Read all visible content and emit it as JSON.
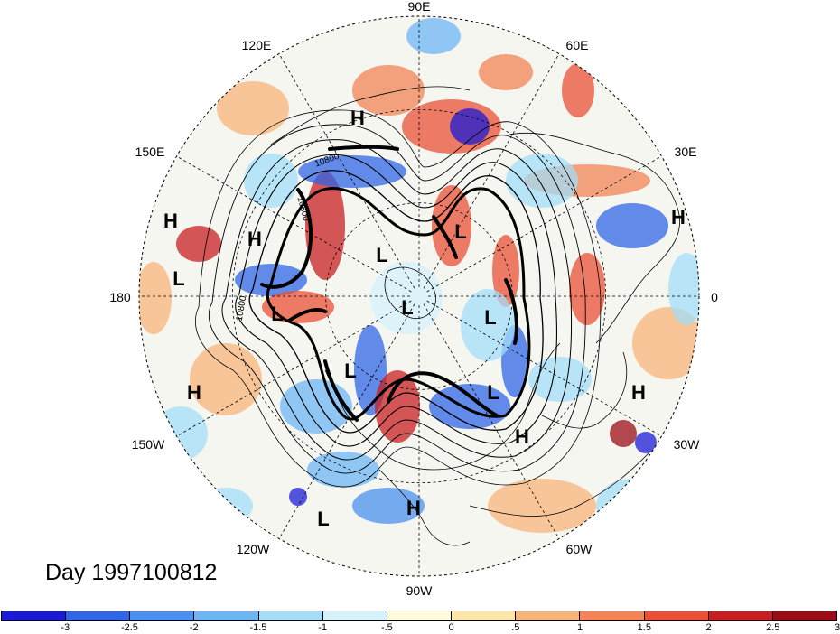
{
  "map": {
    "projection": "polar stereographic (north pole)",
    "longitude_labels": [
      "90E",
      "60E",
      "30E",
      "0",
      "30W",
      "60W",
      "90W",
      "120W",
      "150W",
      "180",
      "150E",
      "120E"
    ],
    "contour_label_values": [
      "10800",
      "10800",
      "10800"
    ],
    "pressure_centers": [
      {
        "type": "H",
        "label": "H"
      },
      {
        "type": "H",
        "label": "H"
      },
      {
        "type": "L",
        "label": "L"
      },
      {
        "type": "H",
        "label": "H"
      },
      {
        "type": "H",
        "label": "H"
      },
      {
        "type": "L",
        "label": "L"
      },
      {
        "type": "L",
        "label": "L"
      },
      {
        "type": "L",
        "label": "L"
      },
      {
        "type": "L",
        "label": "L"
      },
      {
        "type": "L",
        "label": "L"
      },
      {
        "type": "L",
        "label": "L"
      },
      {
        "type": "L",
        "label": "L"
      },
      {
        "type": "H",
        "label": "H"
      },
      {
        "type": "H",
        "label": "H"
      },
      {
        "type": "H",
        "label": "H"
      },
      {
        "type": "H",
        "label": "H"
      },
      {
        "type": "L",
        "label": "L"
      },
      {
        "type": "H",
        "label": "H"
      }
    ],
    "colors": {
      "ocean_bg": "#f6f6f1",
      "land_line": "#000000"
    }
  },
  "day_label": "Day 1997100812",
  "colorbar": {
    "colors": [
      "#1b1bd6",
      "#2f66e6",
      "#4a90ee",
      "#6cb6f4",
      "#a3ddf8",
      "#d5f2fb",
      "#fefbd8",
      "#fce6a6",
      "#f7b47a",
      "#f28455",
      "#ea5035",
      "#c71f21",
      "#9a0d16"
    ],
    "tick_labels": [
      "-3",
      "-2.5",
      "-2",
      "-1.5",
      "-1",
      "-.5",
      "0",
      ".5",
      "1",
      "1.5",
      "2",
      "2.5",
      "3"
    ]
  }
}
